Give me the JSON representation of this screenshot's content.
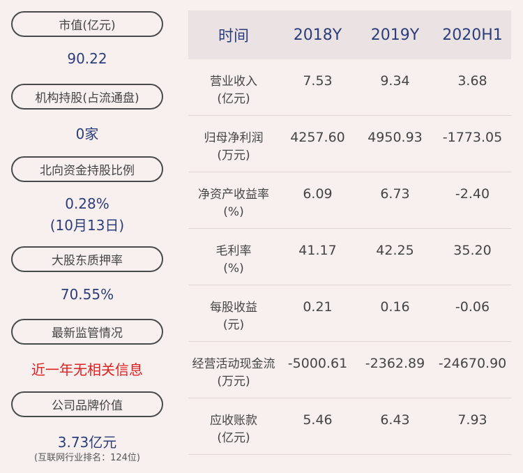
{
  "left": {
    "items": [
      {
        "label": "市值(亿元)",
        "value": "90.22"
      },
      {
        "label": "机构持股(占流通盘)",
        "value": "0家"
      },
      {
        "label": "北向资金持股比例",
        "value": "0.28%",
        "value2": "(10月13日)"
      },
      {
        "label": "大股东质押率",
        "value": "70.55%"
      },
      {
        "label": "最新监管情况",
        "value": "近一年无相关信息"
      },
      {
        "label": "公司品牌价值",
        "value": "3.73亿元",
        "note": "(互联网行业排名：124位)"
      }
    ]
  },
  "table": {
    "headers": [
      "时间",
      "2018Y",
      "2019Y",
      "2020H1"
    ],
    "rows": [
      {
        "name": "营业收入",
        "unit": "(亿元)",
        "values": [
          "7.53",
          "9.34",
          "3.68"
        ]
      },
      {
        "name": "归母净利润",
        "unit": "(万元)",
        "values": [
          "4257.60",
          "4950.93",
          "-1773.05"
        ]
      },
      {
        "name": "净资产收益率",
        "unit": "(%)",
        "values": [
          "6.09",
          "6.73",
          "-2.40"
        ]
      },
      {
        "name": "毛利率",
        "unit": "(%)",
        "values": [
          "41.17",
          "42.25",
          "35.20"
        ]
      },
      {
        "name": "每股收益",
        "unit": "(元)",
        "values": [
          "0.21",
          "0.16",
          "-0.06"
        ]
      },
      {
        "name": "经营活动现金流",
        "unit": "(万元)",
        "values": [
          "-5000.61",
          "-2362.89",
          "-24670.90"
        ]
      },
      {
        "name": "应收账款",
        "unit": "(亿元)",
        "values": [
          "5.46",
          "6.43",
          "7.93"
        ]
      }
    ]
  },
  "colors": {
    "accent": "#2b3d7a",
    "alert": "#e02020",
    "background": "#f7f0ef"
  }
}
